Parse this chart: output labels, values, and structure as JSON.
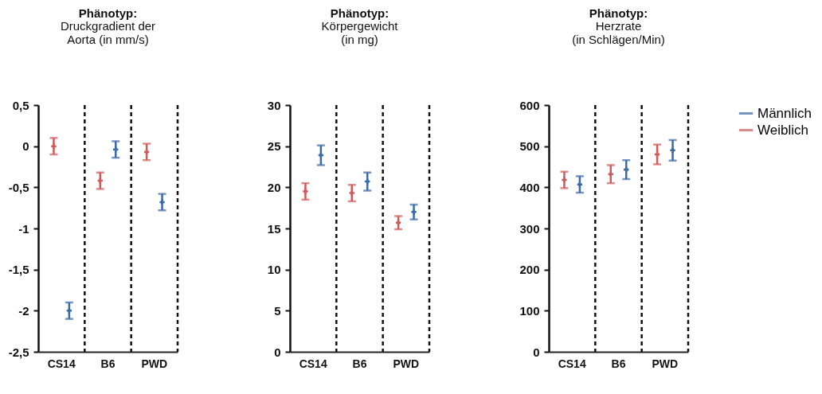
{
  "chart_data": [
    {
      "type": "scatter",
      "title": "Phänotyp:",
      "subtitle": "Druckgradient der\nAorta (in mm/s)",
      "categories": [
        "CS14",
        "B6",
        "PWD"
      ],
      "marker": "cross",
      "grid": "x",
      "legend": "top right",
      "ylim": [
        -2.5,
        0.5
      ],
      "yticks": [
        {
          "value": -2.5,
          "label": "-2,5"
        },
        -2,
        {
          "value": -1.5,
          "label": "-1,5"
        },
        -1,
        {
          "value": -0.5,
          "label": "-0,5"
        },
        0,
        {
          "value": 0.5,
          "label": "0,5"
        }
      ],
      "series": [
        {
          "name": "Männlich",
          "color": "#3a6aa8",
          "values": [
            -2.0,
            -0.04,
            -0.68
          ],
          "errors": [
            0.1,
            0.1,
            0.1
          ]
        },
        {
          "name": "Weiblich",
          "color": "#d05a5a",
          "values": [
            0.0,
            -0.42,
            -0.07
          ],
          "errors": [
            0.1,
            0.1,
            0.1
          ]
        }
      ]
    },
    {
      "type": "scatter",
      "title": "Phänotyp:",
      "subtitle": "Körpergewicht\n(in mg)",
      "categories": [
        "CS14",
        "B6",
        "PWD"
      ],
      "marker": "cross",
      "grid": "x",
      "legend": "top right",
      "ylim": [
        0,
        30
      ],
      "yticks": [
        0,
        5,
        10,
        15,
        20,
        25,
        30
      ],
      "series": [
        {
          "name": "Männlich",
          "color": "#3a6aa8",
          "values": [
            23.9,
            20.7,
            17.0
          ],
          "errors": [
            1.2,
            1.1,
            0.9
          ]
        },
        {
          "name": "Weiblich",
          "color": "#d05a5a",
          "values": [
            19.5,
            19.3,
            15.7
          ],
          "errors": [
            1.0,
            1.0,
            0.8
          ]
        }
      ]
    },
    {
      "type": "scatter",
      "title": "Phänotyp:",
      "subtitle": "Herzrate\n(in Schlägen/Min)",
      "categories": [
        "CS14",
        "B6",
        "PWD"
      ],
      "marker": "cross",
      "grid": "x",
      "legend": "top right",
      "ylim": [
        0,
        600
      ],
      "yticks": [
        0,
        100,
        200,
        300,
        400,
        500,
        600
      ],
      "series": [
        {
          "name": "Männlich",
          "color": "#3a6aa8",
          "values": [
            407,
            443,
            490
          ],
          "errors": [
            20,
            23,
            25
          ]
        },
        {
          "name": "Weiblich",
          "color": "#d05a5a",
          "values": [
            418,
            432,
            480
          ],
          "errors": [
            20,
            22,
            24
          ]
        }
      ]
    }
  ]
}
